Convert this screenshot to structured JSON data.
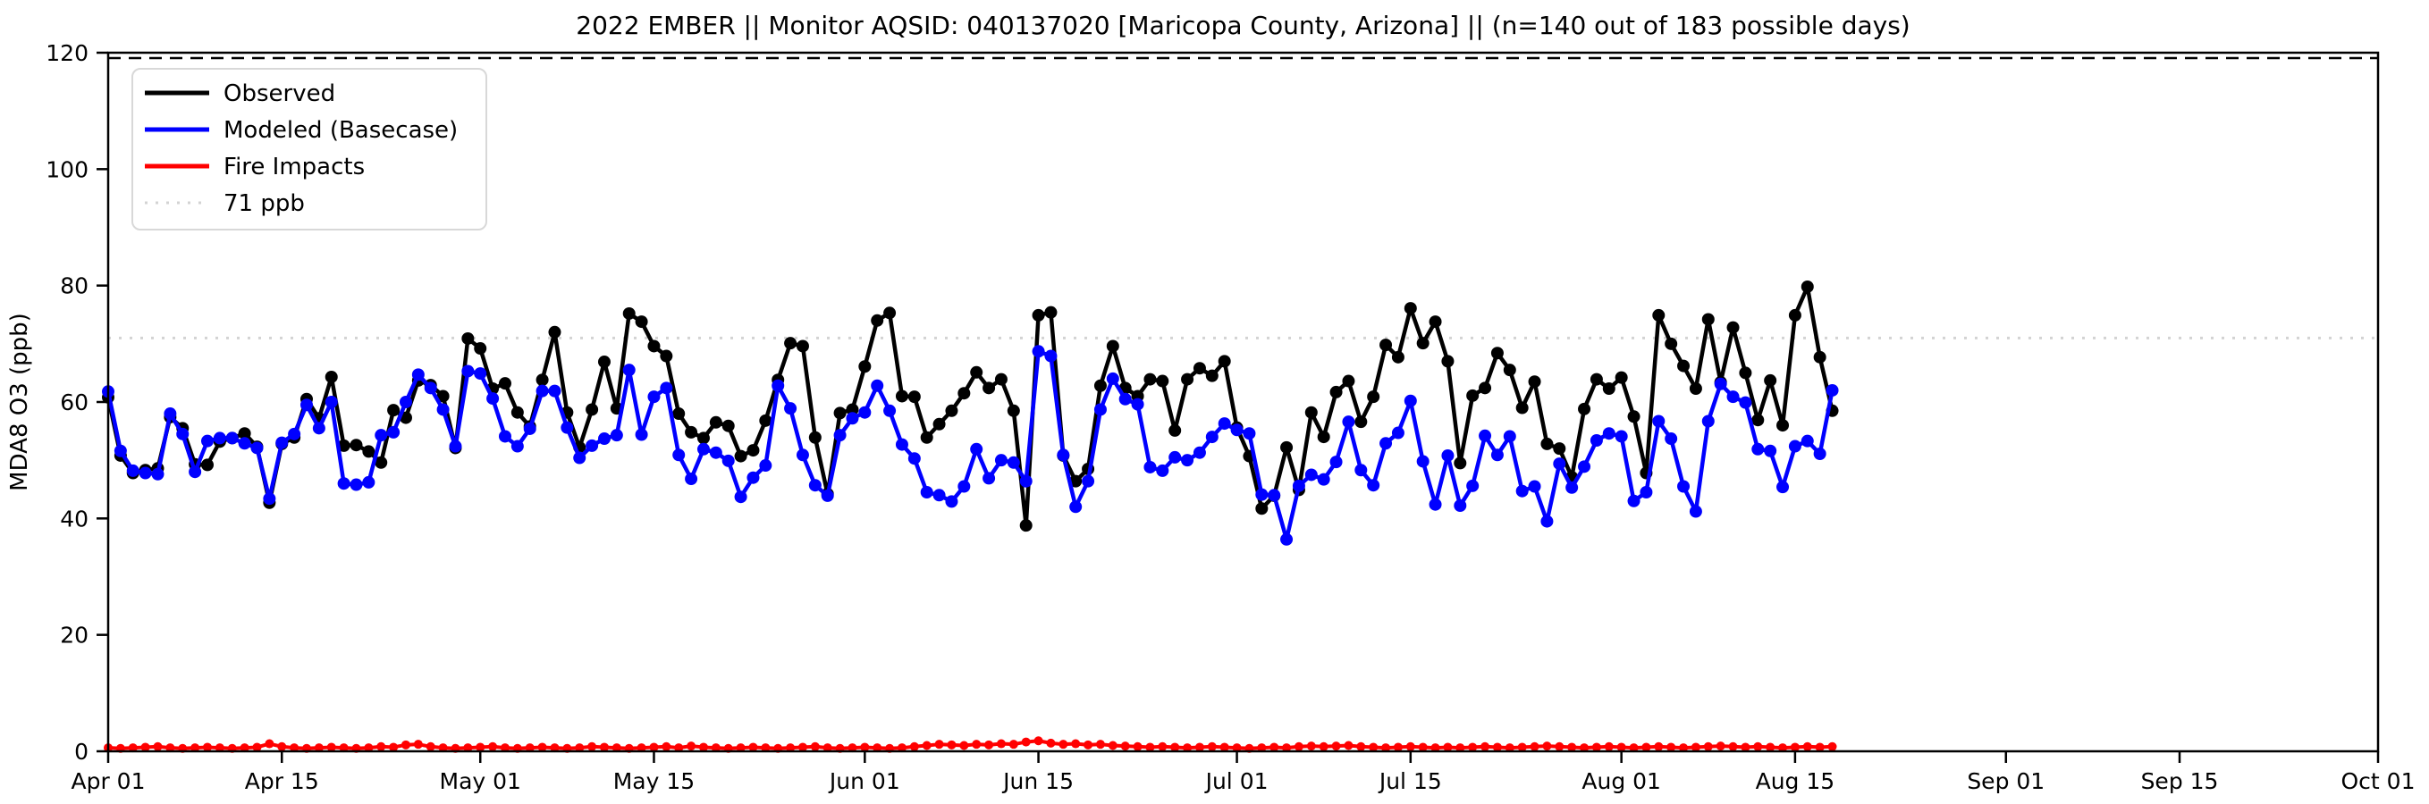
{
  "page": {
    "background": "#ffffff"
  },
  "chart_data": {
    "type": "line",
    "title": "2022 EMBER || Monitor AQSID: 040137020 [Maricopa County, Arizona] || (n=140 out of 183 possible days)",
    "ylabel": "MDA8 O3 (ppb)",
    "ylim": [
      0,
      120
    ],
    "x_start_label": "Apr 01",
    "x_end_label": "Oct 01",
    "x_range_days": 183,
    "n_days_with_data": 140,
    "grid": "off",
    "legend_position": "upper left",
    "y_ticks": [
      0,
      20,
      40,
      60,
      80,
      100,
      120
    ],
    "x_ticks": [
      {
        "label": "Apr 01",
        "day": 0
      },
      {
        "label": "Apr 15",
        "day": 14
      },
      {
        "label": "May 01",
        "day": 30
      },
      {
        "label": "May 15",
        "day": 44
      },
      {
        "label": "Jun 01",
        "day": 61
      },
      {
        "label": "Jun 15",
        "day": 75
      },
      {
        "label": "Jul 01",
        "day": 91
      },
      {
        "label": "Jul 15",
        "day": 105
      },
      {
        "label": "Aug 01",
        "day": 122
      },
      {
        "label": "Aug 15",
        "day": 136
      },
      {
        "label": "Sep 01",
        "day": 153
      },
      {
        "label": "Sep 15",
        "day": 167
      },
      {
        "label": "Oct 01",
        "day": 183
      }
    ],
    "ref_lines": [
      {
        "label": "",
        "value": 120,
        "color": "#000000",
        "style": "dashed"
      },
      {
        "label": "71 ppb",
        "value": 71,
        "color": "#d3d3d3",
        "style": "dotted"
      }
    ],
    "legend": [
      {
        "label": "Observed",
        "color": "#000000",
        "style": "solid"
      },
      {
        "label": "Modeled (Basecase)",
        "color": "#0000ff",
        "style": "solid"
      },
      {
        "label": "Fire Impacts",
        "color": "#ff0000",
        "style": "solid"
      },
      {
        "label": "71 ppb",
        "color": "#d3d3d3",
        "style": "dotted"
      }
    ],
    "series": [
      {
        "name": "Observed",
        "color": "#000000",
        "marker": "circle",
        "marker_r": 7,
        "line_width": 4.5,
        "start_day": 0,
        "values": [
          60.8,
          50.8,
          47.8,
          48.3,
          48.6,
          57.4,
          55.5,
          49.3,
          49.2,
          53.2,
          53.8,
          54.6,
          52.3,
          42.7,
          52.8,
          53.9,
          60.5,
          57.2,
          64.3,
          52.5,
          52.6,
          51.5,
          49.6,
          58.6,
          57.3,
          63.7,
          62.9,
          61.0,
          52.1,
          70.9,
          69.2,
          62.3,
          63.2,
          58.2,
          55.8,
          63.8,
          72.0,
          58.2,
          52.2,
          58.7,
          66.9,
          58.9,
          75.2,
          73.8,
          69.6,
          67.9,
          58.0,
          54.8,
          53.8,
          56.5,
          55.9,
          50.7,
          51.7,
          56.8,
          63.8,
          70.1,
          69.6,
          53.9,
          44.2,
          58.1,
          58.7,
          66.1,
          74.0,
          75.3,
          61.0,
          60.9,
          53.9,
          56.2,
          58.5,
          61.5,
          65.1,
          62.4,
          63.9,
          58.5,
          38.8,
          74.9,
          75.4,
          50.8,
          46.4,
          48.5,
          62.8,
          69.6,
          62.4,
          61.0,
          63.9,
          63.6,
          55.1,
          63.9,
          65.8,
          64.5,
          67.0,
          55.6,
          50.7,
          41.7,
          43.9,
          52.2,
          44.9,
          58.2,
          54.0,
          61.7,
          63.6,
          56.6,
          60.9,
          69.8,
          67.7,
          76.1,
          70.1,
          73.8,
          67.0,
          49.5,
          61.1,
          62.4,
          68.4,
          65.5,
          59.0,
          63.5,
          52.8,
          52.0,
          47.1,
          58.8,
          63.9,
          62.3,
          64.2,
          57.5,
          47.8,
          74.9,
          70.0,
          66.2,
          62.3,
          74.2,
          63.4,
          72.8,
          65.0,
          56.9,
          63.7,
          56.0,
          74.9,
          79.8,
          67.7,
          58.5
        ]
      },
      {
        "name": "Modeled (Basecase)",
        "color": "#0000ff",
        "marker": "circle",
        "marker_r": 7,
        "line_width": 4.5,
        "start_day": 0,
        "values": [
          61.8,
          51.6,
          48.2,
          47.8,
          47.6,
          58.0,
          54.5,
          48.0,
          53.3,
          53.8,
          53.8,
          52.9,
          52.1,
          43.4,
          53.0,
          54.5,
          59.5,
          55.5,
          60.0,
          46.0,
          45.8,
          46.2,
          54.3,
          54.8,
          60.0,
          64.7,
          62.4,
          58.7,
          52.4,
          65.3,
          64.9,
          60.6,
          54.1,
          52.4,
          55.4,
          61.9,
          61.9,
          55.6,
          50.4,
          52.5,
          53.7,
          54.3,
          65.5,
          54.4,
          60.9,
          62.4,
          50.9,
          46.8,
          51.9,
          51.3,
          49.9,
          43.7,
          47.0,
          49.1,
          62.8,
          58.9,
          50.9,
          45.7,
          43.9,
          54.3,
          57.2,
          58.2,
          62.8,
          58.5,
          52.7,
          50.3,
          44.5,
          44.0,
          42.9,
          45.5,
          51.9,
          46.9,
          50.0,
          49.6,
          46.4,
          68.7,
          67.9,
          50.9,
          42.0,
          46.4,
          58.7,
          64.0,
          60.5,
          59.6,
          48.8,
          48.2,
          50.5,
          50.0,
          51.3,
          54.0,
          56.3,
          55.2,
          54.6,
          44.1,
          44.0,
          36.4,
          45.6,
          47.5,
          46.7,
          49.7,
          56.6,
          48.3,
          45.7,
          52.9,
          54.7,
          60.2,
          49.8,
          42.4,
          50.8,
          42.2,
          45.6,
          54.2,
          50.9,
          54.1,
          44.7,
          45.5,
          39.5,
          49.4,
          45.3,
          48.9,
          53.4,
          54.6,
          54.1,
          43.0,
          44.5,
          56.7,
          53.7,
          45.5,
          41.2,
          56.7,
          63.1,
          60.9,
          59.9,
          51.9,
          51.6,
          45.4,
          52.4,
          53.3,
          51.1,
          62.0
        ]
      },
      {
        "name": "Fire Impacts",
        "color": "#ff0000",
        "marker": "circle",
        "marker_r": 5,
        "line_width": 4,
        "start_day": 0,
        "values": [
          0.6,
          0.5,
          0.6,
          0.7,
          0.8,
          0.6,
          0.5,
          0.6,
          0.7,
          0.6,
          0.5,
          0.6,
          0.7,
          1.3,
          0.8,
          0.6,
          0.5,
          0.6,
          0.7,
          0.6,
          0.5,
          0.6,
          0.8,
          0.7,
          1.1,
          1.2,
          0.8,
          0.6,
          0.5,
          0.6,
          0.7,
          0.8,
          0.6,
          0.5,
          0.6,
          0.7,
          0.6,
          0.5,
          0.6,
          0.8,
          0.7,
          0.6,
          0.5,
          0.6,
          0.7,
          0.8,
          0.6,
          0.9,
          0.7,
          0.6,
          0.5,
          0.6,
          0.7,
          0.6,
          0.5,
          0.6,
          0.7,
          0.8,
          0.6,
          0.5,
          0.6,
          0.7,
          0.6,
          0.5,
          0.6,
          0.8,
          1.0,
          1.2,
          1.1,
          1.0,
          1.2,
          1.1,
          1.3,
          1.2,
          1.6,
          1.8,
          1.4,
          1.2,
          1.3,
          1.1,
          1.2,
          1.0,
          0.9,
          0.8,
          0.7,
          0.8,
          0.7,
          0.6,
          0.7,
          0.8,
          0.7,
          0.6,
          0.5,
          0.6,
          0.7,
          0.6,
          0.8,
          0.9,
          0.8,
          0.9,
          1.0,
          0.8,
          0.7,
          0.6,
          0.7,
          0.8,
          0.7,
          0.6,
          0.7,
          0.6,
          0.7,
          0.8,
          0.7,
          0.6,
          0.7,
          0.8,
          0.9,
          0.8,
          0.7,
          0.6,
          0.7,
          0.8,
          0.7,
          0.6,
          0.7,
          0.8,
          0.7,
          0.6,
          0.7,
          0.8,
          0.9,
          0.8,
          0.7,
          0.8,
          0.7,
          0.6,
          0.7,
          0.8,
          0.7,
          0.8
        ]
      }
    ]
  }
}
